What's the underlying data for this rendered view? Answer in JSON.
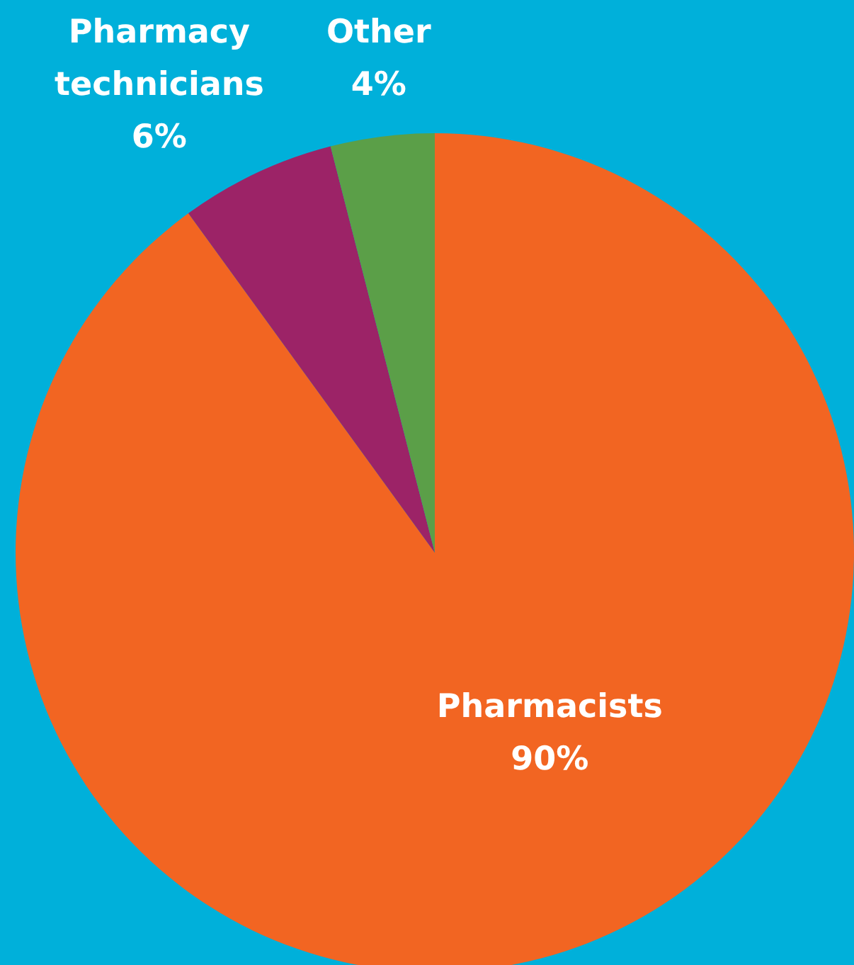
{
  "chart_data": {
    "type": "pie",
    "categories": [
      "Pharmacists",
      "Pharmacy technicians",
      "Other"
    ],
    "values": [
      90,
      6,
      4
    ],
    "value_labels": [
      "90%",
      "6%",
      "4%"
    ],
    "colors": [
      "#f26522",
      "#9c2367",
      "#5b9f48"
    ]
  }
}
